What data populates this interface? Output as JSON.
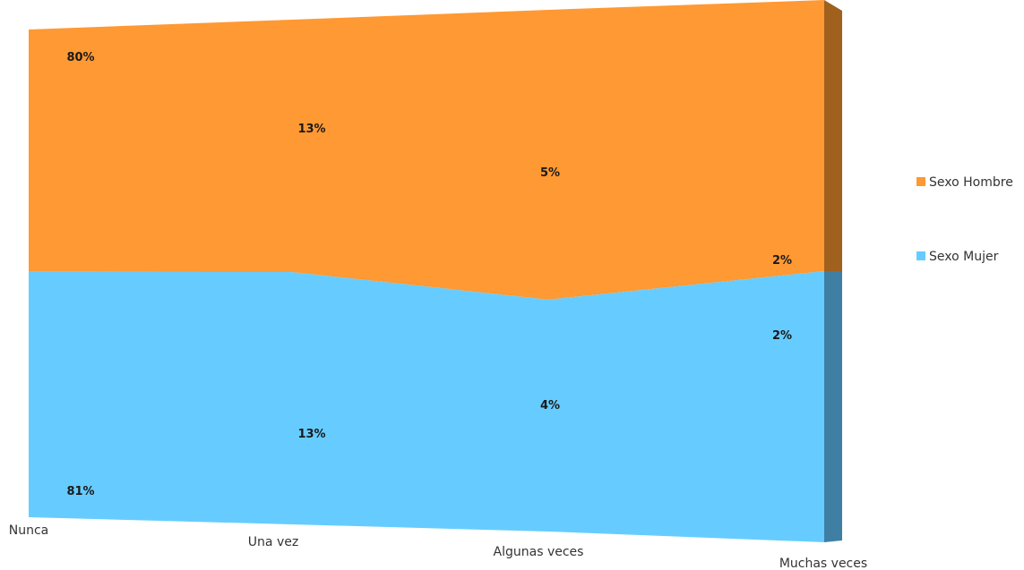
{
  "chart_data": {
    "type": "area",
    "stacking": "percent",
    "view": "3d-perspective",
    "categories": [
      "Nunca",
      "Una vez",
      "Algunas veces",
      "Muchas veces"
    ],
    "series": [
      {
        "name": "Sexo Mujer",
        "color": "#66CCFF",
        "side_color": "#3E7FA3",
        "values": [
          81,
          13,
          4,
          2
        ],
        "labels": [
          "81%",
          "13%",
          "4%",
          "2%"
        ]
      },
      {
        "name": "Sexo Hombre",
        "color": "#FF9933",
        "side_color": "#A0601E",
        "values": [
          80,
          13,
          5,
          2
        ],
        "labels": [
          "80%",
          "13%",
          "5%",
          "2%"
        ]
      }
    ],
    "legend": {
      "position": "right",
      "items": [
        "Sexo Hombre",
        "Sexo Mujer"
      ]
    },
    "grid": false,
    "title": "",
    "xlabel": "",
    "ylabel": ""
  }
}
